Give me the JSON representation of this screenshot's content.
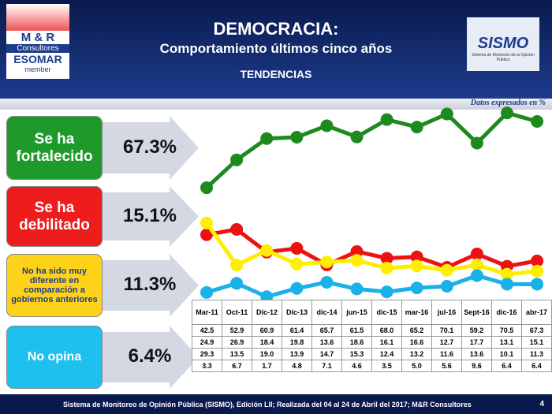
{
  "header": {
    "title": "DEMOCRACIA:",
    "subtitle": "Comportamiento últimos cinco años",
    "section": "TENDENCIAS",
    "note": "Datos expresados en %"
  },
  "logos": {
    "left": [
      "M & R",
      "Consultores",
      "ESOMAR",
      "member"
    ],
    "right": [
      "SISMO",
      "Sistema de Monitoreo de la Opinión Pública"
    ]
  },
  "footer": {
    "text": "Sistema de Monitoreo de Opinión Pública (SISMO), Edición LII; Realizada del 04 al 24 de Abril del 2017; M&R Consultores",
    "page": "4"
  },
  "chart_data": {
    "type": "line",
    "categories": [
      "Mar-11",
      "Oct-11",
      "Dic-12",
      "Dic-13",
      "dic-14",
      "jun-15",
      "dic-15",
      "mar-16",
      "jul-16",
      "Sept-16",
      "dic-16",
      "abr-17"
    ],
    "ylim": [
      0,
      80
    ],
    "series": [
      {
        "name": "Se ha fortalecido",
        "latest": "67.3%",
        "color": "#1e8a1e",
        "box": "#1f9a2a",
        "values": [
          42.5,
          52.9,
          60.9,
          61.4,
          65.7,
          61.5,
          68.0,
          65.2,
          70.1,
          59.2,
          70.5,
          67.3
        ],
        "value_labels": [
          "42.5",
          "52.9",
          "60.9",
          "61.4",
          "65.7",
          "61.5",
          "68.0",
          "65.2",
          "70.1",
          "59.2",
          "70.5",
          "67.3"
        ]
      },
      {
        "name": "Se ha debilitado",
        "latest": "15.1%",
        "color": "#ee1111",
        "box": "#ee1c1c",
        "values": [
          24.9,
          26.9,
          18.4,
          19.8,
          13.6,
          18.6,
          16.1,
          16.6,
          12.7,
          17.7,
          13.1,
          15.1
        ],
        "value_labels": [
          "24.9",
          "26.9",
          "18.4",
          "19.8",
          "13.6",
          "18.6",
          "16.1",
          "16.6",
          "12.7",
          "17.7",
          "13.1",
          "15.1"
        ]
      },
      {
        "name": "No ha sido muy diferente en comparación a gobiernos anteriores",
        "latest": "11.3%",
        "color": "#ffee00",
        "box": "#ffd21a",
        "values": [
          29.3,
          13.5,
          19.0,
          13.9,
          14.7,
          15.3,
          12.4,
          13.2,
          11.6,
          13.6,
          10.1,
          11.3
        ],
        "value_labels": [
          "29.3",
          "13.5",
          "19.0",
          "13.9",
          "14.7",
          "15.3",
          "12.4",
          "13.2",
          "11.6",
          "13.6",
          "10.1",
          "11.3"
        ]
      },
      {
        "name": "No opina",
        "latest": "6.4%",
        "color": "#1ab0e8",
        "box": "#1ec0f0",
        "values": [
          3.3,
          6.7,
          1.7,
          4.8,
          7.1,
          4.6,
          3.5,
          5.0,
          5.6,
          9.6,
          6.4,
          6.4
        ],
        "value_labels": [
          "3.3",
          "6.7",
          "1.7",
          "4.8",
          "7.1",
          "4.6",
          "3.5",
          "5.0",
          "5.6",
          "9.6",
          "6.4",
          "6.4"
        ]
      }
    ]
  }
}
